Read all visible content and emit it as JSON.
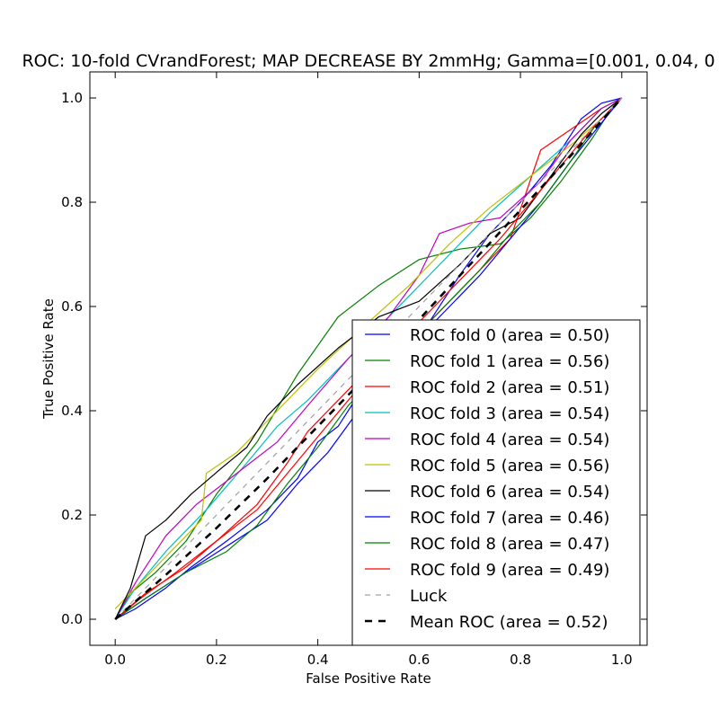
{
  "chart_data": {
    "type": "line",
    "title": "ROC: 10-fold CVrandForest; MAP DECREASE BY 2mmHg; Gamma=[0.001, 0.04, 0",
    "xlabel": "False Positive Rate",
    "ylabel": "True Positive Rate",
    "xlim": [
      -0.05,
      1.05
    ],
    "ylim": [
      -0.05,
      1.05
    ],
    "xticks": [
      "0.0",
      "0.2",
      "0.4",
      "0.6",
      "0.8",
      "1.0"
    ],
    "yticks": [
      "0.0",
      "0.2",
      "0.4",
      "0.6",
      "0.8",
      "1.0"
    ],
    "grid": false,
    "legend_position": "lower-right",
    "series": [
      {
        "name": "ROC fold 0 (area = 0.50)",
        "color": "#0000ff",
        "style": "solid",
        "points": [
          [
            0,
            0
          ],
          [
            0.04,
            0.02
          ],
          [
            0.1,
            0.06
          ],
          [
            0.15,
            0.1
          ],
          [
            0.22,
            0.15
          ],
          [
            0.3,
            0.21
          ],
          [
            0.36,
            0.27
          ],
          [
            0.4,
            0.34
          ],
          [
            0.44,
            0.37
          ],
          [
            0.5,
            0.46
          ],
          [
            0.56,
            0.5
          ],
          [
            0.62,
            0.57
          ],
          [
            0.68,
            0.66
          ],
          [
            0.74,
            0.74
          ],
          [
            0.8,
            0.8
          ],
          [
            0.86,
            0.87
          ],
          [
            0.92,
            0.96
          ],
          [
            0.96,
            0.99
          ],
          [
            1.0,
            1.0
          ]
        ]
      },
      {
        "name": "ROC fold 1 (area = 0.56)",
        "color": "#008000",
        "style": "solid",
        "points": [
          [
            0,
            0
          ],
          [
            0.03,
            0.05
          ],
          [
            0.08,
            0.09
          ],
          [
            0.14,
            0.15
          ],
          [
            0.2,
            0.24
          ],
          [
            0.28,
            0.34
          ],
          [
            0.36,
            0.47
          ],
          [
            0.44,
            0.58
          ],
          [
            0.52,
            0.64
          ],
          [
            0.6,
            0.69
          ],
          [
            0.68,
            0.71
          ],
          [
            0.76,
            0.72
          ],
          [
            0.82,
            0.77
          ],
          [
            0.88,
            0.84
          ],
          [
            0.94,
            0.92
          ],
          [
            0.98,
            0.98
          ],
          [
            1.0,
            1.0
          ]
        ]
      },
      {
        "name": "ROC fold 2 (area = 0.51)",
        "color": "#ff0000",
        "style": "solid",
        "points": [
          [
            0,
            0
          ],
          [
            0.05,
            0.04
          ],
          [
            0.12,
            0.09
          ],
          [
            0.2,
            0.15
          ],
          [
            0.28,
            0.22
          ],
          [
            0.34,
            0.3
          ],
          [
            0.38,
            0.36
          ],
          [
            0.44,
            0.42
          ],
          [
            0.5,
            0.48
          ],
          [
            0.56,
            0.53
          ],
          [
            0.62,
            0.57
          ],
          [
            0.7,
            0.65
          ],
          [
            0.78,
            0.73
          ],
          [
            0.84,
            0.9
          ],
          [
            0.9,
            0.94
          ],
          [
            0.96,
            0.98
          ],
          [
            1.0,
            1.0
          ]
        ]
      },
      {
        "name": "ROC fold 3 (area = 0.54)",
        "color": "#00bfbf",
        "style": "solid",
        "points": [
          [
            0,
            0
          ],
          [
            0.04,
            0.06
          ],
          [
            0.1,
            0.13
          ],
          [
            0.18,
            0.21
          ],
          [
            0.26,
            0.3
          ],
          [
            0.32,
            0.37
          ],
          [
            0.38,
            0.42
          ],
          [
            0.44,
            0.48
          ],
          [
            0.5,
            0.54
          ],
          [
            0.58,
            0.62
          ],
          [
            0.66,
            0.7
          ],
          [
            0.74,
            0.78
          ],
          [
            0.82,
            0.85
          ],
          [
            0.9,
            0.92
          ],
          [
            0.96,
            0.98
          ],
          [
            1.0,
            1.0
          ]
        ]
      },
      {
        "name": "ROC fold 4 (area = 0.54)",
        "color": "#bf00bf",
        "style": "solid",
        "points": [
          [
            0,
            0
          ],
          [
            0.04,
            0.07
          ],
          [
            0.1,
            0.16
          ],
          [
            0.16,
            0.22
          ],
          [
            0.24,
            0.28
          ],
          [
            0.32,
            0.34
          ],
          [
            0.38,
            0.41
          ],
          [
            0.46,
            0.5
          ],
          [
            0.54,
            0.58
          ],
          [
            0.6,
            0.66
          ],
          [
            0.64,
            0.74
          ],
          [
            0.7,
            0.76
          ],
          [
            0.76,
            0.77
          ],
          [
            0.84,
            0.84
          ],
          [
            0.9,
            0.92
          ],
          [
            0.96,
            0.98
          ],
          [
            1.0,
            1.0
          ]
        ]
      },
      {
        "name": "ROC fold 5 (area = 0.56)",
        "color": "#bfbf00",
        "style": "solid",
        "points": [
          [
            0,
            0.02
          ],
          [
            0.06,
            0.08
          ],
          [
            0.12,
            0.14
          ],
          [
            0.17,
            0.19
          ],
          [
            0.18,
            0.28
          ],
          [
            0.24,
            0.32
          ],
          [
            0.32,
            0.4
          ],
          [
            0.4,
            0.48
          ],
          [
            0.5,
            0.57
          ],
          [
            0.58,
            0.64
          ],
          [
            0.66,
            0.72
          ],
          [
            0.74,
            0.79
          ],
          [
            0.82,
            0.85
          ],
          [
            0.9,
            0.91
          ],
          [
            0.96,
            0.96
          ],
          [
            1.0,
            1.0
          ]
        ]
      },
      {
        "name": "ROC fold 6 (area = 0.54)",
        "color": "#000000",
        "style": "solid",
        "points": [
          [
            0,
            0
          ],
          [
            0.03,
            0.06
          ],
          [
            0.06,
            0.16
          ],
          [
            0.1,
            0.19
          ],
          [
            0.15,
            0.24
          ],
          [
            0.21,
            0.29
          ],
          [
            0.26,
            0.33
          ],
          [
            0.3,
            0.39
          ],
          [
            0.36,
            0.45
          ],
          [
            0.44,
            0.52
          ],
          [
            0.52,
            0.58
          ],
          [
            0.6,
            0.61
          ],
          [
            0.68,
            0.68
          ],
          [
            0.74,
            0.74
          ],
          [
            0.8,
            0.77
          ],
          [
            0.86,
            0.85
          ],
          [
            0.92,
            0.93
          ],
          [
            0.96,
            0.97
          ],
          [
            1.0,
            1.0
          ]
        ]
      },
      {
        "name": "ROC fold 7 (area = 0.46)",
        "color": "#0000ff",
        "style": "solid",
        "points": [
          [
            0,
            0
          ],
          [
            0.06,
            0.04
          ],
          [
            0.14,
            0.09
          ],
          [
            0.22,
            0.14
          ],
          [
            0.3,
            0.19
          ],
          [
            0.36,
            0.26
          ],
          [
            0.42,
            0.32
          ],
          [
            0.48,
            0.4
          ],
          [
            0.54,
            0.48
          ],
          [
            0.6,
            0.54
          ],
          [
            0.66,
            0.6
          ],
          [
            0.72,
            0.66
          ],
          [
            0.78,
            0.73
          ],
          [
            0.84,
            0.8
          ],
          [
            0.9,
            0.88
          ],
          [
            0.95,
            0.94
          ],
          [
            1.0,
            1.0
          ]
        ]
      },
      {
        "name": "ROC fold 8 (area = 0.47)",
        "color": "#008000",
        "style": "solid",
        "points": [
          [
            0,
            0
          ],
          [
            0.06,
            0.04
          ],
          [
            0.14,
            0.09
          ],
          [
            0.22,
            0.13
          ],
          [
            0.28,
            0.18
          ],
          [
            0.34,
            0.26
          ],
          [
            0.4,
            0.33
          ],
          [
            0.46,
            0.41
          ],
          [
            0.54,
            0.49
          ],
          [
            0.6,
            0.55
          ],
          [
            0.66,
            0.61
          ],
          [
            0.72,
            0.67
          ],
          [
            0.78,
            0.74
          ],
          [
            0.84,
            0.8
          ],
          [
            0.9,
            0.88
          ],
          [
            0.95,
            0.95
          ],
          [
            1.0,
            1.0
          ]
        ]
      },
      {
        "name": "ROC fold 9 (area = 0.49)",
        "color": "#ff0000",
        "style": "solid",
        "points": [
          [
            0,
            0
          ],
          [
            0.06,
            0.05
          ],
          [
            0.14,
            0.1
          ],
          [
            0.2,
            0.15
          ],
          [
            0.28,
            0.21
          ],
          [
            0.34,
            0.28
          ],
          [
            0.4,
            0.35
          ],
          [
            0.46,
            0.42
          ],
          [
            0.52,
            0.49
          ],
          [
            0.58,
            0.55
          ],
          [
            0.64,
            0.61
          ],
          [
            0.7,
            0.67
          ],
          [
            0.76,
            0.73
          ],
          [
            0.82,
            0.8
          ],
          [
            0.88,
            0.87
          ],
          [
            0.94,
            0.94
          ],
          [
            1.0,
            1.0
          ]
        ]
      },
      {
        "name": "Luck",
        "color": "#a0a0a0",
        "style": "dashed",
        "points": [
          [
            0,
            0
          ],
          [
            1,
            1
          ]
        ]
      },
      {
        "name": "Mean ROC (area = 0.52)",
        "color": "#000000",
        "style": "dashed-thick",
        "points": [
          [
            0,
            0
          ],
          [
            0.1,
            0.085
          ],
          [
            0.2,
            0.175
          ],
          [
            0.3,
            0.27
          ],
          [
            0.4,
            0.37
          ],
          [
            0.5,
            0.47
          ],
          [
            0.6,
            0.575
          ],
          [
            0.7,
            0.68
          ],
          [
            0.8,
            0.785
          ],
          [
            0.9,
            0.89
          ],
          [
            1.0,
            1.0
          ]
        ]
      }
    ]
  }
}
